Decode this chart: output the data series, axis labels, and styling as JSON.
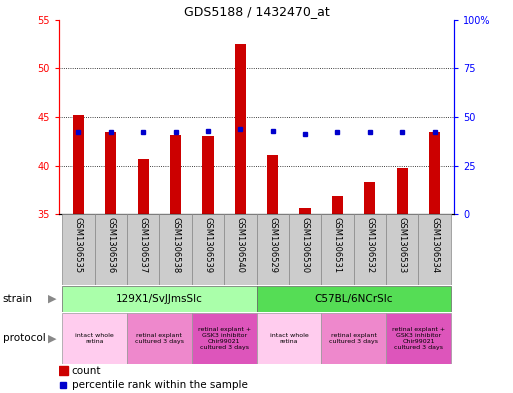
{
  "title": "GDS5188 / 1432470_at",
  "samples": [
    "GSM1306535",
    "GSM1306536",
    "GSM1306537",
    "GSM1306538",
    "GSM1306539",
    "GSM1306540",
    "GSM1306529",
    "GSM1306530",
    "GSM1306531",
    "GSM1306532",
    "GSM1306533",
    "GSM1306534"
  ],
  "counts": [
    45.2,
    43.5,
    40.7,
    43.1,
    43.0,
    52.5,
    41.1,
    35.6,
    36.9,
    38.3,
    39.7,
    43.5
  ],
  "percentiles_pct": [
    42,
    42,
    42,
    42,
    43,
    44,
    43,
    41,
    42,
    42,
    42,
    42
  ],
  "ylim": [
    35,
    55
  ],
  "ylim_right": [
    0,
    100
  ],
  "yticks_left": [
    35,
    40,
    45,
    50,
    55
  ],
  "yticks_right": [
    0,
    25,
    50,
    75,
    100
  ],
  "bar_color": "#cc0000",
  "dot_color": "#0000cc",
  "strains": [
    {
      "label": "129X1/SvJJmsSlc",
      "start": 0,
      "end": 6,
      "color": "#aaffaa"
    },
    {
      "label": "C57BL/6NCrSlc",
      "start": 6,
      "end": 12,
      "color": "#55dd55"
    }
  ],
  "protocols": [
    {
      "label": "intact whole\nretina",
      "start": 0,
      "end": 2,
      "color": "#ffccee"
    },
    {
      "label": "retinal explant\ncultured 3 days",
      "start": 2,
      "end": 4,
      "color": "#ee88cc"
    },
    {
      "label": "retinal explant +\nGSK3 inhibitor\nChir99021\ncultured 3 days",
      "start": 4,
      "end": 6,
      "color": "#dd55bb"
    },
    {
      "label": "intact whole\nretina",
      "start": 6,
      "end": 8,
      "color": "#ffccee"
    },
    {
      "label": "retinal explant\ncultured 3 days",
      "start": 8,
      "end": 10,
      "color": "#ee88cc"
    },
    {
      "label": "retinal explant +\nGSK3 inhibitor\nChir99021\ncultured 3 days",
      "start": 10,
      "end": 12,
      "color": "#dd55bb"
    }
  ],
  "label_bg": "#cccccc",
  "bar_width": 0.35
}
